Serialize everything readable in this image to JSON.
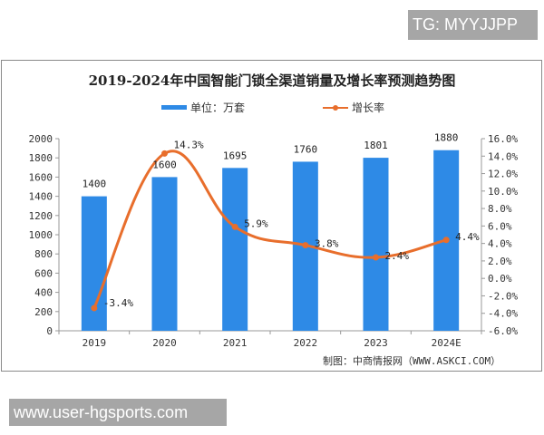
{
  "overlays": {
    "tg_label": "TG: MYYJJPP",
    "site_label": "www.user-hgsports.com"
  },
  "chart": {
    "title": "2019-2024年中国智能门锁全渠道销量及增长率预测趋势图",
    "legend": {
      "bar_label": "单位：万套",
      "line_label": "增长率"
    },
    "source": "制图：中商情报网（WWW.ASKCI.COM）",
    "colors": {
      "bar": "#2e8ae6",
      "line": "#e86e2c"
    }
  },
  "chart_data": {
    "type": "bar",
    "title": "2019-2024年中国智能门锁全渠道销量及增长率预测趋势图",
    "categories": [
      "2019",
      "2020",
      "2021",
      "2022",
      "2023",
      "2024E"
    ],
    "series": [
      {
        "name": "单位：万套",
        "type": "bar",
        "axis": "left",
        "values": [
          1400,
          1600,
          1695,
          1760,
          1801,
          1880
        ],
        "labels": [
          "1400",
          "1600",
          "1695",
          "1760",
          "1801",
          "1880"
        ]
      },
      {
        "name": "增长率",
        "type": "line",
        "axis": "right",
        "values": [
          -3.4,
          14.3,
          5.9,
          3.8,
          2.4,
          4.4
        ],
        "labels": [
          "-3.4%",
          "14.3%",
          "5.9%",
          "3.8%",
          "2.4%",
          "4.4%"
        ]
      }
    ],
    "left_axis": {
      "ylim": [
        0,
        2000
      ],
      "ticks": [
        "0",
        "200",
        "400",
        "600",
        "800",
        "1000",
        "1200",
        "1400",
        "1600",
        "1800",
        "2000"
      ]
    },
    "right_axis": {
      "ylim": [
        -6.0,
        16.0
      ],
      "ticks": [
        "-6.0%",
        "-4.0%",
        "-2.0%",
        "0.0%",
        "2.0%",
        "4.0%",
        "6.0%",
        "8.0%",
        "10.0%",
        "12.0%",
        "14.0%",
        "16.0%"
      ]
    },
    "xlabel": "",
    "ylabel": "",
    "grid": false,
    "legend_position": "top"
  }
}
